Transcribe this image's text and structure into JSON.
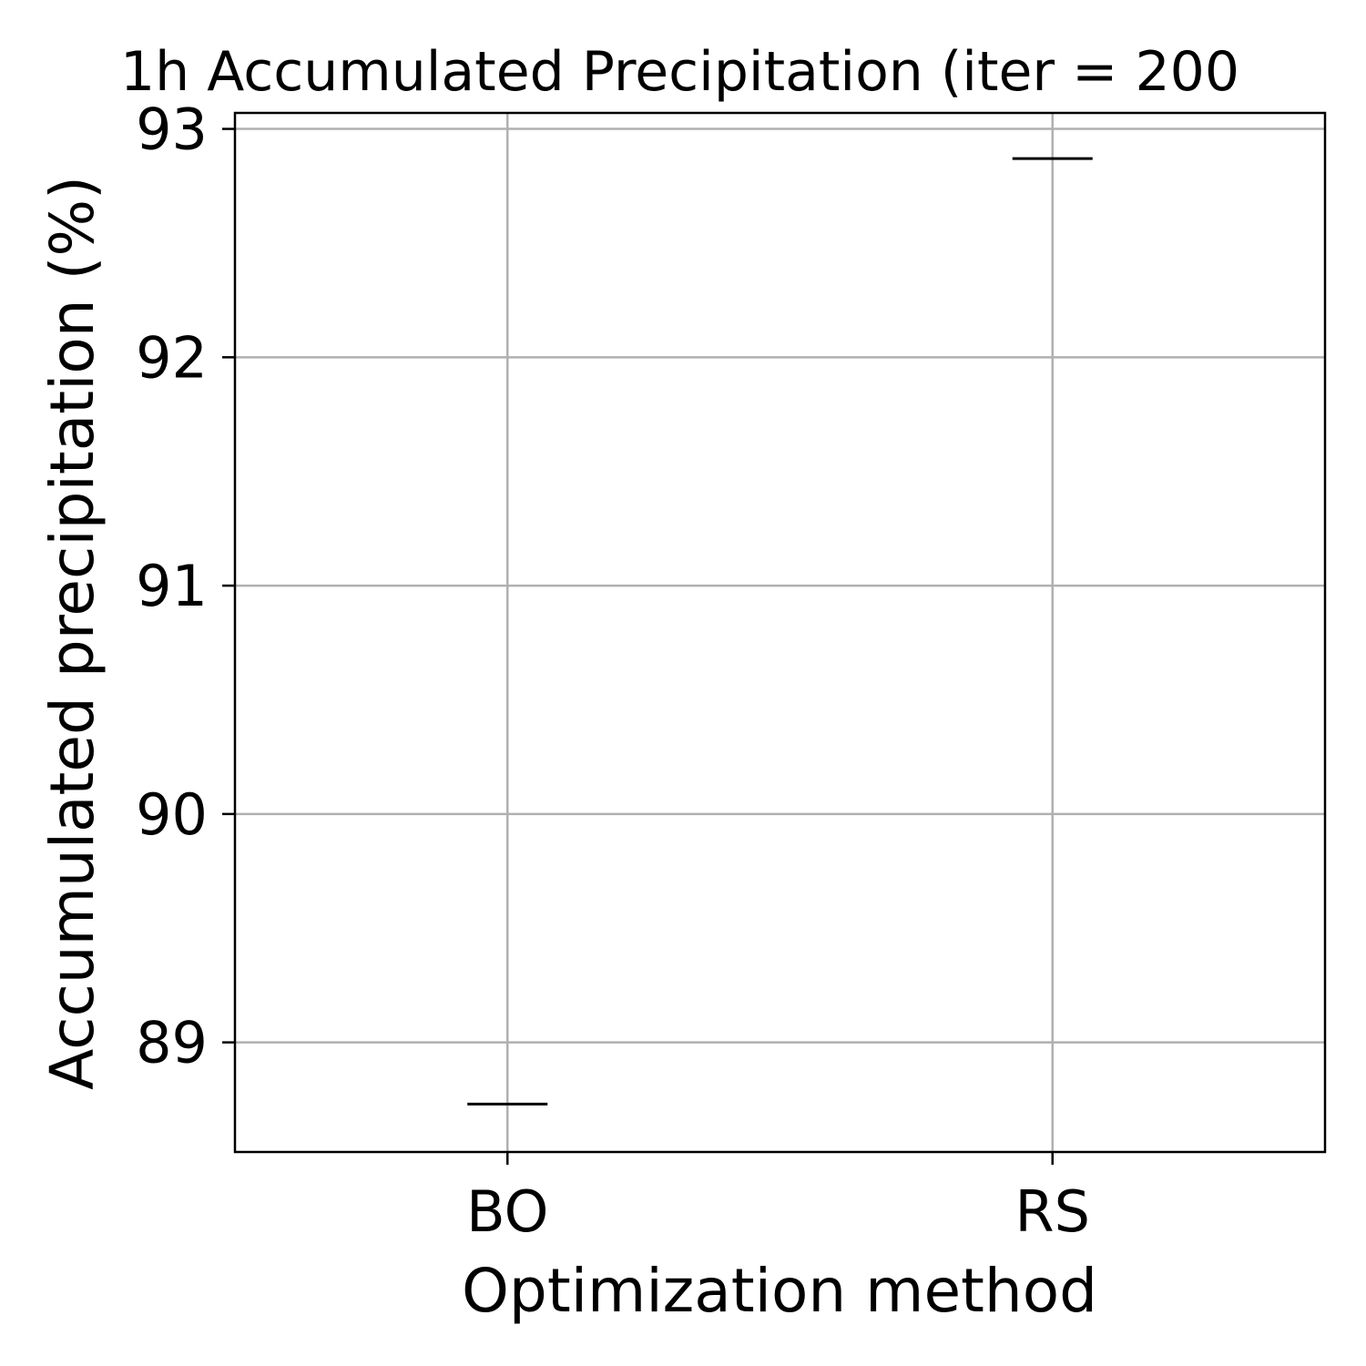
{
  "chart_data": {
    "type": "box",
    "title": "1h Accumulated Precipitation (iter = 200",
    "xlabel": "Optimization method",
    "ylabel": "Accumulated precipitation (%)",
    "categories": [
      "BO",
      "RS"
    ],
    "values": [
      88.73,
      92.87
    ],
    "ylim": [
      88.52,
      93.07
    ],
    "yticks": [
      "89",
      "90",
      "91",
      "92",
      "93"
    ],
    "grid": true,
    "colors": {
      "median": "#000000",
      "grid": "#b0b0b0",
      "frame": "#000000"
    }
  }
}
